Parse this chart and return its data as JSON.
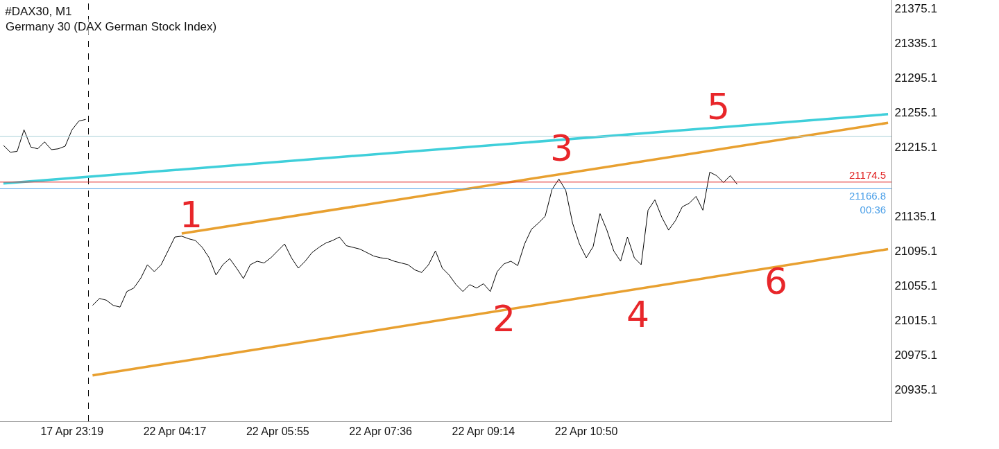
{
  "chart_data": {
    "type": "line",
    "title": "#DAX30, M1",
    "subtitle": "Germany 30 (DAX German Stock Index)",
    "categories": [
      null,
      null,
      null,
      null,
      null,
      null,
      null,
      null,
      null,
      null,
      "17 Apr 23:19",
      null,
      null,
      null,
      null,
      null,
      null,
      null,
      null,
      null,
      null,
      null,
      null,
      null,
      null,
      "22 Apr 04:17",
      null,
      null,
      null,
      null,
      null,
      null,
      null,
      null,
      null,
      null,
      null,
      null,
      null,
      null,
      "22 Apr 05:55",
      null,
      null,
      null,
      null,
      null,
      null,
      null,
      null,
      null,
      null,
      null,
      null,
      null,
      null,
      "22 Apr 07:36",
      null,
      null,
      null,
      null,
      null,
      null,
      null,
      null,
      null,
      null,
      null,
      null,
      null,
      null,
      "22 Apr 09:14",
      null,
      null,
      null,
      null,
      null,
      null,
      null,
      null,
      null,
      null,
      null,
      null,
      null,
      null,
      "22 Apr 10:50",
      null,
      null,
      null,
      null,
      null,
      null,
      null,
      null,
      null,
      null,
      null,
      null,
      null,
      null,
      null,
      null,
      null,
      null,
      null,
      null,
      null,
      null,
      null,
      null,
      null,
      null,
      null,
      null,
      null,
      null,
      null,
      null,
      null,
      null,
      null,
      null,
      null,
      null,
      null,
      null,
      null,
      null,
      null,
      null
    ],
    "ylim": [
      20898,
      21385
    ],
    "yticks": [
      20935.1,
      20975.1,
      21015.1,
      21055.1,
      21095.1,
      21135.1,
      21215.1,
      21255.1,
      21295.1,
      21335.1,
      21375.1
    ],
    "series": [
      {
        "color": "#000000",
        "values": [
          21217,
          21209,
          21210,
          21235,
          21215,
          21213,
          21221,
          21212,
          21213,
          21216,
          21235,
          21245,
          21247,
          null,
          null,
          null,
          null,
          null,
          null,
          null,
          null,
          null,
          null,
          null,
          null,
          null,
          null,
          null,
          null,
          null,
          null,
          null,
          null,
          null,
          null,
          null,
          null,
          null,
          null,
          null,
          null,
          null,
          null,
          null,
          null,
          null,
          null,
          null,
          null,
          null,
          null,
          null,
          null,
          null,
          null,
          null,
          null,
          null,
          null,
          null,
          null,
          null,
          null,
          null,
          null,
          null,
          null,
          null,
          null,
          null,
          null,
          null,
          null,
          null,
          null,
          null,
          null,
          null,
          null,
          null,
          null,
          null,
          null,
          null,
          null,
          null,
          null,
          null,
          null,
          null,
          null,
          null,
          null,
          null,
          null,
          null,
          null,
          null,
          null,
          null,
          null,
          null,
          null,
          null,
          null,
          null,
          null,
          null,
          null,
          null,
          null,
          null,
          null,
          null,
          null,
          null,
          null,
          null,
          null,
          null,
          null,
          null,
          null,
          null,
          null,
          null,
          null,
          null,
          null,
          null
        ]
      },
      {
        "color": "#000000",
        "values": [
          null,
          null,
          null,
          null,
          null,
          null,
          null,
          null,
          null,
          null,
          null,
          null,
          null,
          21032,
          21040,
          21038,
          21032,
          21030,
          21048,
          21052,
          21063,
          21079,
          21071,
          21079,
          21095,
          21111,
          21112,
          21109,
          21107,
          21099,
          21087,
          21067,
          21079,
          21086,
          21075,
          21063,
          21079,
          21083,
          21081,
          21087,
          21095,
          21103,
          21087,
          21075,
          21083,
          21093,
          21099,
          21104,
          21107,
          21111,
          21101,
          21099,
          21097,
          21093,
          21089,
          21087,
          21086,
          21083,
          21081,
          21079,
          21073,
          21070,
          21079,
          21095,
          21075,
          21067,
          21056,
          21048,
          21056,
          21052,
          21057,
          21048,
          21071,
          21080,
          21083,
          21078,
          21103,
          21120,
          21127,
          21135,
          21166,
          21178,
          21165,
          21127,
          21103,
          21087,
          21100,
          21138,
          21119,
          21095,
          21083,
          21111,
          21087,
          21079,
          21142,
          21154,
          21134,
          21119,
          21130,
          21146,
          21150,
          21158,
          21142,
          21186,
          21182,
          21174,
          21182,
          21172,
          null,
          null,
          null,
          null,
          null,
          null,
          null,
          null,
          null,
          null,
          null,
          null,
          null,
          null,
          null,
          null,
          null,
          null,
          null,
          null,
          null,
          null
        ]
      },
      {
        "type": "line",
        "color": "#3fcfda",
        "values": [
          21173,
          null,
          null,
          null,
          null,
          null,
          null,
          null,
          null,
          null,
          null,
          null,
          null,
          null,
          null,
          null,
          null,
          null,
          null,
          null,
          null,
          null,
          null,
          null,
          null,
          null,
          null,
          null,
          null,
          null,
          null,
          null,
          null,
          null,
          null,
          null,
          null,
          null,
          null,
          null,
          null,
          null,
          null,
          null,
          null,
          null,
          null,
          null,
          null,
          null,
          null,
          null,
          null,
          null,
          null,
          null,
          null,
          null,
          null,
          null,
          null,
          null,
          null,
          null,
          null,
          null,
          null,
          null,
          null,
          null,
          null,
          null,
          null,
          null,
          null,
          null,
          null,
          null,
          null,
          null,
          null,
          null,
          null,
          null,
          null,
          null,
          null,
          null,
          null,
          null,
          null,
          null,
          null,
          null,
          null,
          null,
          null,
          null,
          null,
          null,
          null,
          null,
          null,
          null,
          null,
          null,
          null,
          null,
          null,
          null,
          null,
          null,
          null,
          null,
          null,
          null,
          null,
          null,
          null,
          null,
          null,
          null,
          null,
          null,
          null,
          null,
          null,
          null,
          null,
          21253
        ]
      },
      {
        "type": "line",
        "color": "#e8a030",
        "values": [
          null,
          null,
          null,
          null,
          null,
          null,
          null,
          null,
          null,
          null,
          null,
          null,
          null,
          null,
          null,
          null,
          null,
          null,
          null,
          null,
          null,
          null,
          null,
          null,
          null,
          null,
          21115,
          null,
          null,
          null,
          null,
          null,
          null,
          null,
          null,
          null,
          null,
          null,
          null,
          null,
          null,
          null,
          null,
          null,
          null,
          null,
          null,
          null,
          null,
          null,
          null,
          null,
          null,
          null,
          null,
          null,
          null,
          null,
          null,
          null,
          null,
          null,
          null,
          null,
          null,
          null,
          null,
          null,
          null,
          null,
          null,
          null,
          null,
          null,
          null,
          null,
          null,
          null,
          null,
          null,
          null,
          null,
          null,
          null,
          null,
          null,
          null,
          null,
          null,
          null,
          null,
          null,
          null,
          null,
          null,
          null,
          null,
          null,
          null,
          null,
          null,
          null,
          null,
          null,
          null,
          null,
          null,
          null,
          null,
          null,
          null,
          null,
          null,
          null,
          null,
          null,
          null,
          null,
          null,
          null,
          null,
          null,
          null,
          null,
          null,
          null,
          null,
          null,
          null,
          21243
        ]
      },
      {
        "type": "line",
        "color": "#e8a030",
        "values": [
          null,
          null,
          null,
          null,
          null,
          null,
          null,
          null,
          null,
          null,
          null,
          null,
          null,
          20951,
          null,
          null,
          null,
          null,
          null,
          null,
          null,
          null,
          null,
          null,
          null,
          null,
          null,
          null,
          null,
          null,
          null,
          null,
          null,
          null,
          null,
          null,
          null,
          null,
          null,
          null,
          null,
          null,
          null,
          null,
          null,
          null,
          null,
          null,
          null,
          null,
          null,
          null,
          null,
          null,
          null,
          null,
          null,
          null,
          null,
          null,
          null,
          null,
          null,
          null,
          null,
          null,
          null,
          null,
          null,
          null,
          null,
          null,
          null,
          null,
          null,
          null,
          null,
          null,
          null,
          null,
          null,
          null,
          null,
          null,
          null,
          null,
          null,
          null,
          null,
          null,
          null,
          null,
          null,
          null,
          null,
          null,
          null,
          null,
          null,
          null,
          null,
          null,
          null,
          null,
          null,
          null,
          null,
          null,
          null,
          null,
          null,
          null,
          null,
          null,
          null,
          null,
          null,
          null,
          null,
          null,
          null,
          null,
          null,
          null,
          null,
          null,
          null,
          null,
          null,
          21097
        ]
      }
    ],
    "ref_lines": [
      {
        "axis": "y",
        "value": 21174.5,
        "label": "21174.5",
        "color": "#e02020"
      },
      {
        "axis": "y",
        "value": 21166.8,
        "label": "21166.8\n00:36",
        "color": "#4a9fe8"
      },
      {
        "axis": "y",
        "value": 21227.5,
        "color": "#a8cfd8"
      }
    ],
    "annotations": [
      "1",
      "2",
      "3",
      "4",
      "5",
      "6"
    ]
  }
}
